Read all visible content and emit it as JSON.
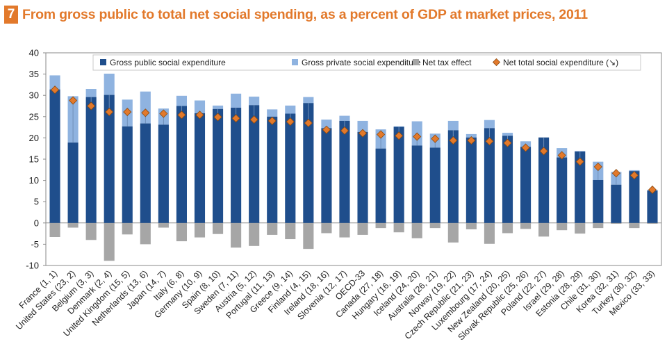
{
  "header": {
    "figure_number": "7",
    "title": "From gross public to total net social spending, as a percent of GDP at market prices, 2011"
  },
  "colors": {
    "title": "#e2792b",
    "gross_public": "#1f4e8c",
    "gross_private": "#8fb3e0",
    "net_tax": "#a6a6a6",
    "net_total": "#e2792b"
  },
  "chart_data": {
    "type": "bar",
    "stacked": true,
    "title": "From gross public to total net social spending, as a percent of GDP at market prices, 2011",
    "xlabel": "",
    "ylabel": "",
    "ylim": [
      -10,
      40
    ],
    "yticks": [
      -10,
      -5,
      0,
      5,
      10,
      15,
      20,
      25,
      30,
      35,
      40
    ],
    "grid": false,
    "legend_position": "top",
    "categories": [
      "France (1, 1)",
      "United States (23, 2)",
      "Belgium (3, 3)",
      "Denmark (2, 4)",
      "United Kingdom (15, 5)",
      "Netherlands (13, 6)",
      "Japan (14, 7)",
      "Italy (6, 8)",
      "Germany (10, 9)",
      "Spain (8, 10)",
      "Sweden (7, 11)",
      "Austria (5, 12)",
      "Portugal (11, 13)",
      "Greece (9, 14)",
      "Finland (4, 15)",
      "Ireland (18, 16)",
      "Slovenia (12, 17)",
      "OECD-33",
      "Canada (27, 18)",
      "Hungary (16, 19)",
      "Iceland (24, 20)",
      "Australia (26, 21)",
      "Norway (19, 22)",
      "Czech Republic (21, 23)",
      "Luxembourg (17, 24)",
      "New Zealand (20, 25)",
      "Slovak Republic (25, 26)",
      "Poland (22, 27)",
      "Israel (29, 28)",
      "Estonia (28, 29)",
      "Chile (31, 30)",
      "Korea (32, 31)",
      "Turkey (30, 32)",
      "Mexico (33, 33)"
    ],
    "series": [
      {
        "name": "Gross public social expenditure",
        "kind": "bar",
        "values": [
          31.4,
          18.9,
          29.6,
          30.1,
          22.7,
          23.4,
          23.1,
          27.5,
          25.8,
          26.8,
          27.1,
          27.7,
          25.0,
          25.7,
          28.2,
          22.3,
          24.0,
          21.4,
          17.5,
          22.6,
          18.2,
          17.7,
          21.8,
          20.1,
          22.3,
          20.5,
          17.9,
          20.1,
          15.4,
          16.8,
          10.1,
          9.0,
          12.2,
          7.6
        ]
      },
      {
        "name": "Gross private social expenditure",
        "kind": "bar",
        "values": [
          3.3,
          10.9,
          1.9,
          5.0,
          6.3,
          7.5,
          3.8,
          2.4,
          3.0,
          0.8,
          3.3,
          2.0,
          1.7,
          1.9,
          1.4,
          2.0,
          1.2,
          2.6,
          4.5,
          0.1,
          5.7,
          3.3,
          2.2,
          0.8,
          1.9,
          0.7,
          1.3,
          0.0,
          2.2,
          0.1,
          4.3,
          3.0,
          0.2,
          0.2
        ]
      },
      {
        "name": "Net tax effect",
        "kind": "bar",
        "values": [
          -3.3,
          -1.1,
          -4.0,
          -8.9,
          -2.7,
          -5.0,
          -1.1,
          -4.3,
          -3.4,
          -2.6,
          -5.8,
          -5.4,
          -2.8,
          -3.8,
          -6.1,
          -2.4,
          -3.4,
          -2.8,
          -1.2,
          -2.2,
          -3.6,
          -1.2,
          -4.6,
          -1.5,
          -4.9,
          -2.4,
          -1.4,
          -3.2,
          -1.7,
          -2.5,
          -1.2,
          -0.2,
          -1.2,
          -0.2
        ]
      },
      {
        "name": "Net total social expenditure (↘)",
        "kind": "marker",
        "values": [
          31.3,
          28.8,
          27.5,
          26.1,
          26.1,
          25.9,
          25.7,
          25.4,
          25.4,
          24.9,
          24.6,
          24.3,
          24.0,
          23.8,
          23.5,
          21.9,
          21.7,
          21.1,
          20.8,
          20.5,
          20.3,
          19.8,
          19.4,
          19.4,
          19.2,
          18.8,
          17.7,
          16.9,
          15.9,
          14.4,
          13.2,
          11.7,
          11.2,
          7.8
        ]
      }
    ]
  }
}
